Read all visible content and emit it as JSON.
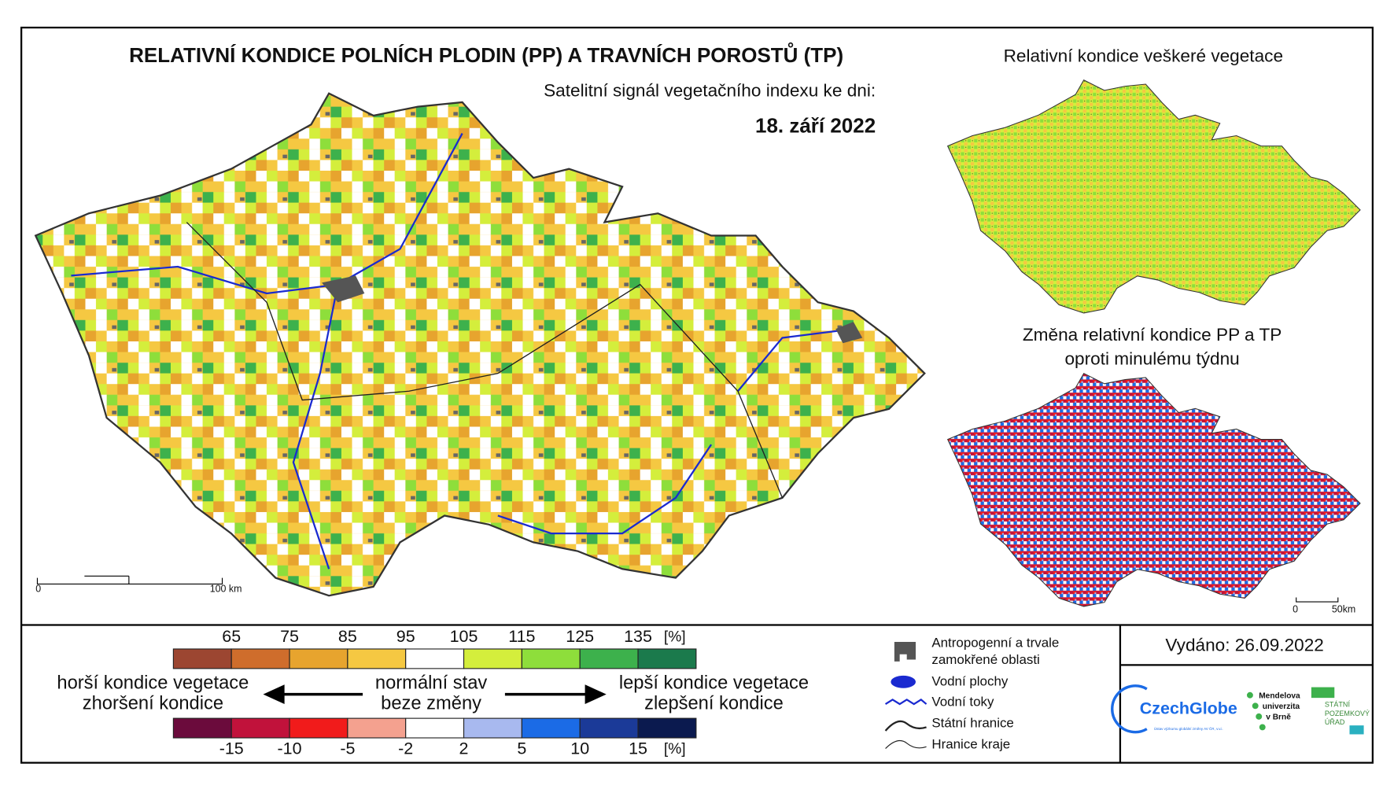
{
  "header": {
    "title": "RELATIVNÍ KONDICE POLNÍCH PLODIN (PP) A TRAVNÍCH POROSTŮ (TP)",
    "subtitle": "Satelitní signál vegetačního indexu ke dni:",
    "date": "18. září 2022"
  },
  "main_map": {
    "scale_start": "0",
    "scale_end": "100 km"
  },
  "inset_top": {
    "title": "Relativní kondice veškeré vegetace"
  },
  "inset_bottom": {
    "title_line1": "Změna relativní kondice PP a TP",
    "title_line2": "oproti minulému týdnu",
    "scale_start": "0",
    "scale_end": "50km"
  },
  "legend": {
    "condition": {
      "ticks": [
        "65",
        "75",
        "85",
        "95",
        "105",
        "115",
        "125",
        "135"
      ],
      "unit": "[%]",
      "colors": [
        "#9c4631",
        "#cf6d2c",
        "#e7a42e",
        "#f5c842",
        "#ffffff",
        "#d4ee3c",
        "#8ede3b",
        "#3db14c",
        "#1b7a4c"
      ]
    },
    "change": {
      "ticks": [
        "-15",
        "-10",
        "-5",
        "-2",
        "2",
        "5",
        "10",
        "15"
      ],
      "unit": "[%]",
      "colors": [
        "#6b0b3c",
        "#c1123b",
        "#f11b1b",
        "#f4a18f",
        "#ffffff",
        "#a8b9ef",
        "#1b6be6",
        "#1b3a98",
        "#0b1a4f"
      ]
    },
    "worse_line1": "horší kondice vegetace",
    "worse_line2": "zhoršení kondice",
    "normal_line1": "normální stav",
    "normal_line2": "beze změny",
    "better_line1": "lepší kondice vegetace",
    "better_line2": "zlepšení kondice",
    "symbols": {
      "anthropogenic_line1": "Antropogenní a trvale",
      "anthropogenic_line2": "zamokřené oblasti",
      "water_bodies": "Vodní plochy",
      "rivers": "Vodní toky",
      "state_border": "Státní hranice",
      "region_border": "Hranice kraje"
    }
  },
  "footer": {
    "issued": "Vydáno: 26.09.2022",
    "logo1": "CzechGlobe",
    "logo1_sub": "Ústav výzkumu globální změny AV ČR, v.v.i.",
    "logo2_line1": "Mendelova",
    "logo2_line2": "univerzita",
    "logo2_line3": "v Brně",
    "logo3_line1": "STÁTNÍ",
    "logo3_line2": "POZEMKOVÝ",
    "logo3_line3": "ÚŘAD"
  }
}
